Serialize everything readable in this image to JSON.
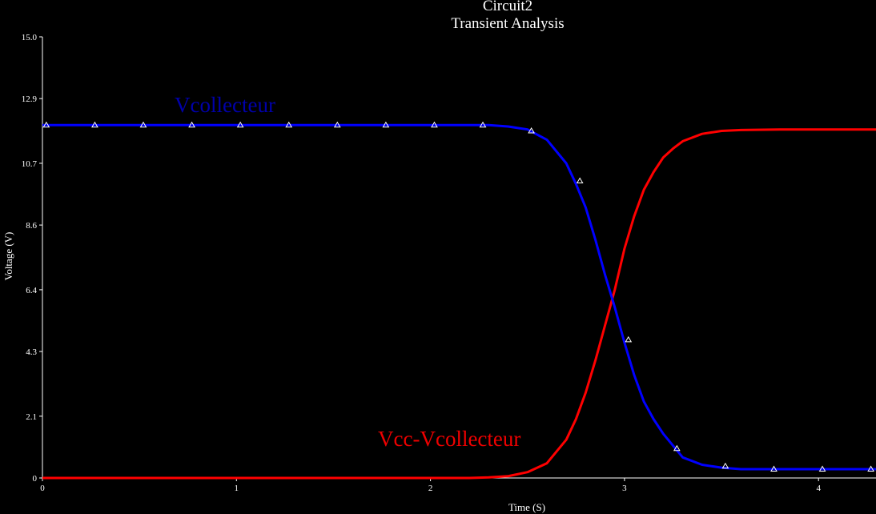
{
  "chart_data": {
    "type": "line",
    "title": "Circuit2",
    "subtitle": "Transient Analysis",
    "xlabel": "Time (S)",
    "ylabel": "Voltage (V)",
    "xlim": [
      0,
      4.3
    ],
    "ylim": [
      0,
      15.0
    ],
    "x_ticks": [
      0,
      1,
      2,
      3,
      4
    ],
    "x_tick_labels": [
      "0",
      "1",
      "2",
      "3",
      "4"
    ],
    "y_ticks": [
      0,
      2.1,
      4.3,
      6.4,
      8.6,
      10.7,
      12.9,
      15.0
    ],
    "y_tick_labels": [
      "0",
      "2.1",
      "4.3",
      "6.4",
      "8.6",
      "10.7",
      "12.9",
      "15.0"
    ],
    "grid": false,
    "series": [
      {
        "name": "Vcollecteur",
        "color": "#0000ff",
        "label_color": "#0000aa",
        "marker": "triangle",
        "x": [
          0,
          0.3,
          0.6,
          0.9,
          1.2,
          1.5,
          1.8,
          2.1,
          2.2,
          2.3,
          2.4,
          2.5,
          2.6,
          2.7,
          2.75,
          2.8,
          2.85,
          2.9,
          2.95,
          3.0,
          3.05,
          3.1,
          3.15,
          3.2,
          3.25,
          3.3,
          3.4,
          3.5,
          3.6,
          3.7,
          3.8,
          4.0,
          4.3
        ],
        "y": [
          12.0,
          12.0,
          12.0,
          12.0,
          12.0,
          12.0,
          12.0,
          12.0,
          12.0,
          12.0,
          11.95,
          11.85,
          11.5,
          10.7,
          10.0,
          9.2,
          8.1,
          6.9,
          5.8,
          4.6,
          3.5,
          2.6,
          2.0,
          1.5,
          1.1,
          0.7,
          0.45,
          0.35,
          0.3,
          0.3,
          0.3,
          0.3,
          0.3
        ],
        "marker_x": [
          0.02,
          0.27,
          0.52,
          0.77,
          1.02,
          1.27,
          1.52,
          1.77,
          2.02,
          2.27,
          2.52,
          2.77,
          3.02,
          3.27,
          3.52,
          3.77,
          4.02,
          4.27
        ],
        "marker_y": [
          12.0,
          12.0,
          12.0,
          12.0,
          12.0,
          12.0,
          12.0,
          12.0,
          12.0,
          12.0,
          11.8,
          10.1,
          4.7,
          1.0,
          0.4,
          0.3,
          0.3,
          0.3
        ]
      },
      {
        "name": "Vcc-Vcollecteur",
        "color": "#ff0000",
        "label_color": "#ee0000",
        "marker": "none",
        "x": [
          0,
          2.0,
          2.2,
          2.3,
          2.4,
          2.5,
          2.6,
          2.7,
          2.75,
          2.8,
          2.85,
          2.9,
          2.95,
          3.0,
          3.05,
          3.1,
          3.15,
          3.2,
          3.25,
          3.3,
          3.4,
          3.5,
          3.6,
          3.8,
          4.0,
          4.3
        ],
        "y": [
          0,
          0,
          0,
          0.02,
          0.06,
          0.2,
          0.5,
          1.3,
          2.0,
          2.9,
          4.0,
          5.2,
          6.4,
          7.8,
          8.9,
          9.8,
          10.4,
          10.9,
          11.2,
          11.45,
          11.7,
          11.8,
          11.83,
          11.85,
          11.85,
          11.85
        ]
      }
    ]
  }
}
